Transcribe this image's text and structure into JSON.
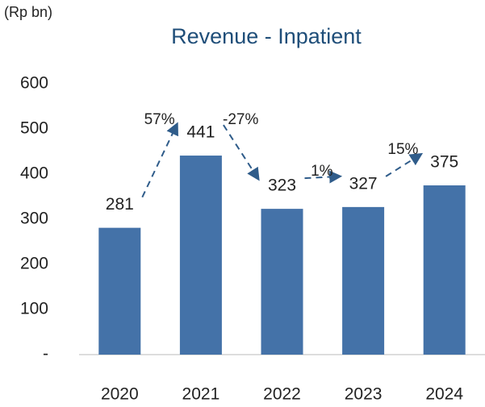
{
  "chart_data": {
    "type": "bar",
    "title": "Revenue - Inpatient",
    "unit_label": "(Rp bn)",
    "categories": [
      "2020",
      "2021",
      "2022",
      "2023",
      "2024"
    ],
    "values": [
      281,
      441,
      323,
      327,
      375
    ],
    "color": "#4472a8",
    "annotations": [
      "57%",
      "-27%",
      "1%",
      "15%"
    ],
    "ylim": [
      0,
      600
    ],
    "yticks": [
      {
        "value": 0,
        "label": "-"
      },
      100,
      200,
      300,
      400,
      500,
      600
    ],
    "grid": false
  }
}
